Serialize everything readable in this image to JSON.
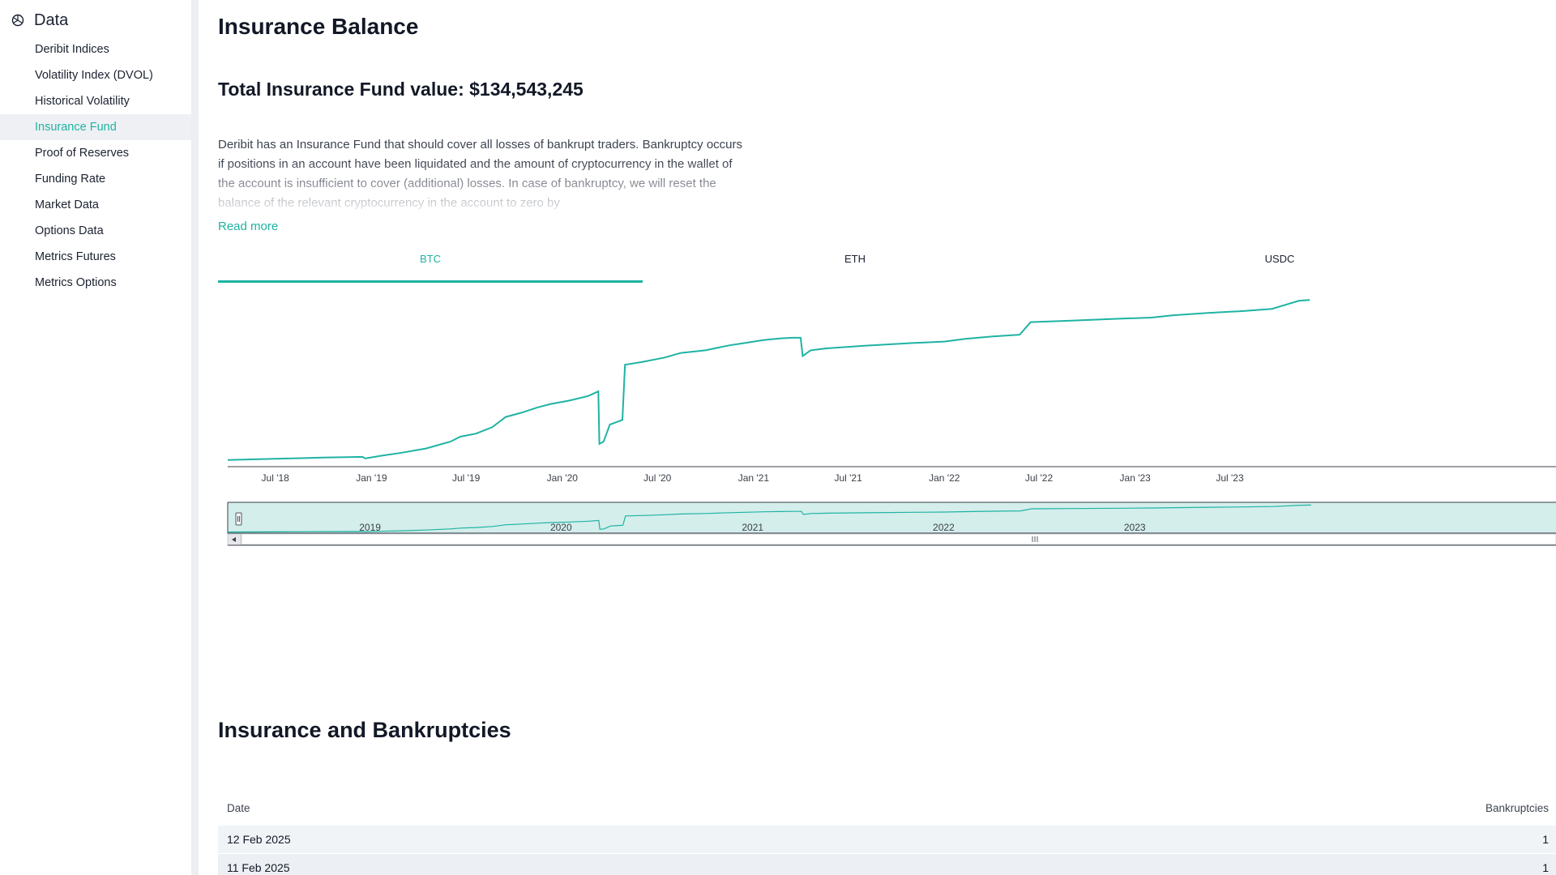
{
  "sidebar": {
    "title": "Data",
    "items": [
      {
        "label": "Deribit Indices"
      },
      {
        "label": "Volatility Index (DVOL)"
      },
      {
        "label": "Historical Volatility"
      },
      {
        "label": "Insurance Fund",
        "active": true
      },
      {
        "label": "Proof of Reserves"
      },
      {
        "label": "Funding Rate"
      },
      {
        "label": "Market Data"
      },
      {
        "label": "Options Data"
      },
      {
        "label": "Metrics Futures"
      },
      {
        "label": "Metrics Options"
      }
    ]
  },
  "main": {
    "title": "Insurance Balance",
    "total_label": "Total Insurance Fund value: $134,543,245",
    "description": "Deribit has an Insurance Fund that should cover all losses of bankrupt traders. Bankruptcy occurs if positions in an account have been liquidated and the amount of cryptocurrency in the wallet of the account is insufficient to cover (additional) losses. In case of bankruptcy, we will reset the balance of the relevant cryptocurrency in the account to zero by",
    "read_more": "Read more",
    "tabs": [
      {
        "label": "BTC",
        "active": true
      },
      {
        "label": "ETH"
      },
      {
        "label": "USDC"
      }
    ]
  },
  "colors": {
    "accent": "#1fb3a3",
    "navigator_fill": "#d4eeeb"
  },
  "chart_data": {
    "type": "line",
    "title": "",
    "xlabel": "",
    "ylabel": "",
    "x_ticks": [
      "Jul '18",
      "Jan '19",
      "Jul '19",
      "Jan '20",
      "Jul '20",
      "Jan '21",
      "Jul '21",
      "Jan '22",
      "Jul '22",
      "Jan '23",
      "Jul '23"
    ],
    "navigator_ticks": [
      "2019",
      "2020",
      "2021",
      "2022",
      "2023"
    ],
    "navigator_handle_icon": "grip-icon",
    "scroll_left_icon": "arrow-left-icon",
    "scroll_thumb_icon": "grip-icon",
    "grid": false,
    "series": [
      {
        "points": [
          [
            "2018-04-01",
            0.5
          ],
          [
            "2018-07-01",
            0.8
          ],
          [
            "2018-10-01",
            1.1
          ],
          [
            "2018-12-15",
            1.3
          ],
          [
            "2018-12-20",
            0.9
          ],
          [
            "2019-01-20",
            1.6
          ],
          [
            "2019-03-01",
            2.4
          ],
          [
            "2019-04-15",
            3.5
          ],
          [
            "2019-06-01",
            5.3
          ],
          [
            "2019-06-20",
            6.6
          ],
          [
            "2019-07-20",
            7.4
          ],
          [
            "2019-08-20",
            9.1
          ],
          [
            "2019-09-15",
            11.8
          ],
          [
            "2019-10-15",
            12.9
          ],
          [
            "2019-11-15",
            14.3
          ],
          [
            "2019-12-10",
            15.2
          ],
          [
            "2020-01-15",
            16.1
          ],
          [
            "2020-02-20",
            17.3
          ],
          [
            "2020-03-10",
            18.5
          ],
          [
            "2020-03-12",
            4.7
          ],
          [
            "2020-03-20",
            5.3
          ],
          [
            "2020-04-01",
            9.8
          ],
          [
            "2020-04-25",
            11.0
          ],
          [
            "2020-04-30",
            25.5
          ],
          [
            "2020-06-01",
            26.2
          ],
          [
            "2020-07-15",
            27.4
          ],
          [
            "2020-08-15",
            28.6
          ],
          [
            "2020-10-01",
            29.3
          ],
          [
            "2020-11-15",
            30.6
          ],
          [
            "2020-12-15",
            31.2
          ],
          [
            "2021-01-20",
            32.0
          ],
          [
            "2021-02-20",
            32.4
          ],
          [
            "2021-03-15",
            32.6
          ],
          [
            "2021-04-01",
            32.6
          ],
          [
            "2021-04-05",
            27.8
          ],
          [
            "2021-04-20",
            29.3
          ],
          [
            "2021-05-20",
            29.8
          ],
          [
            "2021-08-01",
            30.5
          ],
          [
            "2021-11-01",
            31.2
          ],
          [
            "2022-01-01",
            31.6
          ],
          [
            "2022-02-10",
            32.3
          ],
          [
            "2022-04-01",
            32.9
          ],
          [
            "2022-05-25",
            33.4
          ],
          [
            "2022-06-15",
            36.7
          ],
          [
            "2022-09-01",
            37.1
          ],
          [
            "2022-12-01",
            37.6
          ],
          [
            "2023-02-01",
            37.9
          ],
          [
            "2023-03-15",
            38.5
          ],
          [
            "2023-05-20",
            39.1
          ],
          [
            "2023-07-25",
            39.6
          ],
          [
            "2023-09-20",
            40.2
          ],
          [
            "2023-11-10",
            42.3
          ],
          [
            "2023-12-01",
            42.5
          ]
        ]
      }
    ]
  },
  "section2": {
    "title": "Insurance and Bankruptcies",
    "columns": [
      "Date",
      "Bankruptcies"
    ],
    "rows": [
      {
        "date": "12 Feb 2025",
        "bankruptcies": "1"
      },
      {
        "date": "11 Feb 2025",
        "bankruptcies": "1"
      }
    ]
  }
}
